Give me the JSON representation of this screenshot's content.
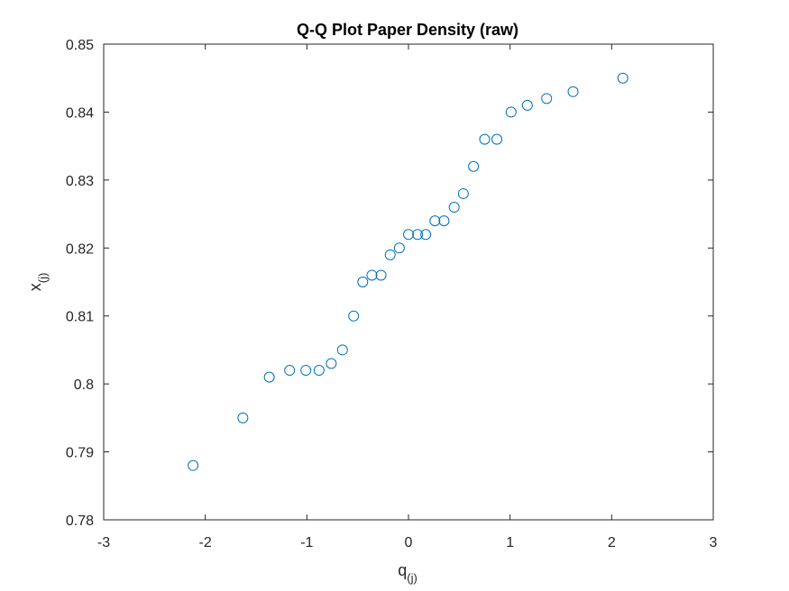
{
  "chart_data": {
    "type": "scatter",
    "title": "Q-Q Plot Paper Density (raw)",
    "xlabel": {
      "base": "q",
      "sub": "(j)"
    },
    "ylabel": {
      "base": "x",
      "sub": "(j)"
    },
    "xlim": [
      -3,
      3
    ],
    "ylim": [
      0.78,
      0.85
    ],
    "xticks": [
      -3,
      -2,
      -1,
      0,
      1,
      2,
      3
    ],
    "xtick_labels": [
      "-3",
      "-2",
      "-1",
      "0",
      "1",
      "2",
      "3"
    ],
    "yticks": [
      0.78,
      0.79,
      0.8,
      0.81,
      0.82,
      0.83,
      0.84,
      0.85
    ],
    "ytick_labels": [
      "0.78",
      "0.79",
      "0.8",
      "0.81",
      "0.82",
      "0.83",
      "0.84",
      "0.85"
    ],
    "grid": false,
    "marker": "open-circle",
    "color": "#0072BD",
    "points": [
      {
        "x": -2.12,
        "y": 0.788
      },
      {
        "x": -1.63,
        "y": 0.795
      },
      {
        "x": -1.37,
        "y": 0.801
      },
      {
        "x": -1.17,
        "y": 0.802
      },
      {
        "x": -1.01,
        "y": 0.802
      },
      {
        "x": -0.88,
        "y": 0.802
      },
      {
        "x": -0.76,
        "y": 0.803
      },
      {
        "x": -0.65,
        "y": 0.805
      },
      {
        "x": -0.54,
        "y": 0.81
      },
      {
        "x": -0.45,
        "y": 0.815
      },
      {
        "x": -0.36,
        "y": 0.816
      },
      {
        "x": -0.27,
        "y": 0.816
      },
      {
        "x": -0.18,
        "y": 0.819
      },
      {
        "x": -0.09,
        "y": 0.82
      },
      {
        "x": 0.0,
        "y": 0.822
      },
      {
        "x": 0.09,
        "y": 0.822
      },
      {
        "x": 0.17,
        "y": 0.822
      },
      {
        "x": 0.26,
        "y": 0.824
      },
      {
        "x": 0.35,
        "y": 0.824
      },
      {
        "x": 0.45,
        "y": 0.826
      },
      {
        "x": 0.54,
        "y": 0.828
      },
      {
        "x": 0.64,
        "y": 0.832
      },
      {
        "x": 0.75,
        "y": 0.836
      },
      {
        "x": 0.87,
        "y": 0.836
      },
      {
        "x": 1.01,
        "y": 0.84
      },
      {
        "x": 1.17,
        "y": 0.841
      },
      {
        "x": 1.36,
        "y": 0.842
      },
      {
        "x": 1.62,
        "y": 0.843
      },
      {
        "x": 2.11,
        "y": 0.845
      }
    ]
  }
}
